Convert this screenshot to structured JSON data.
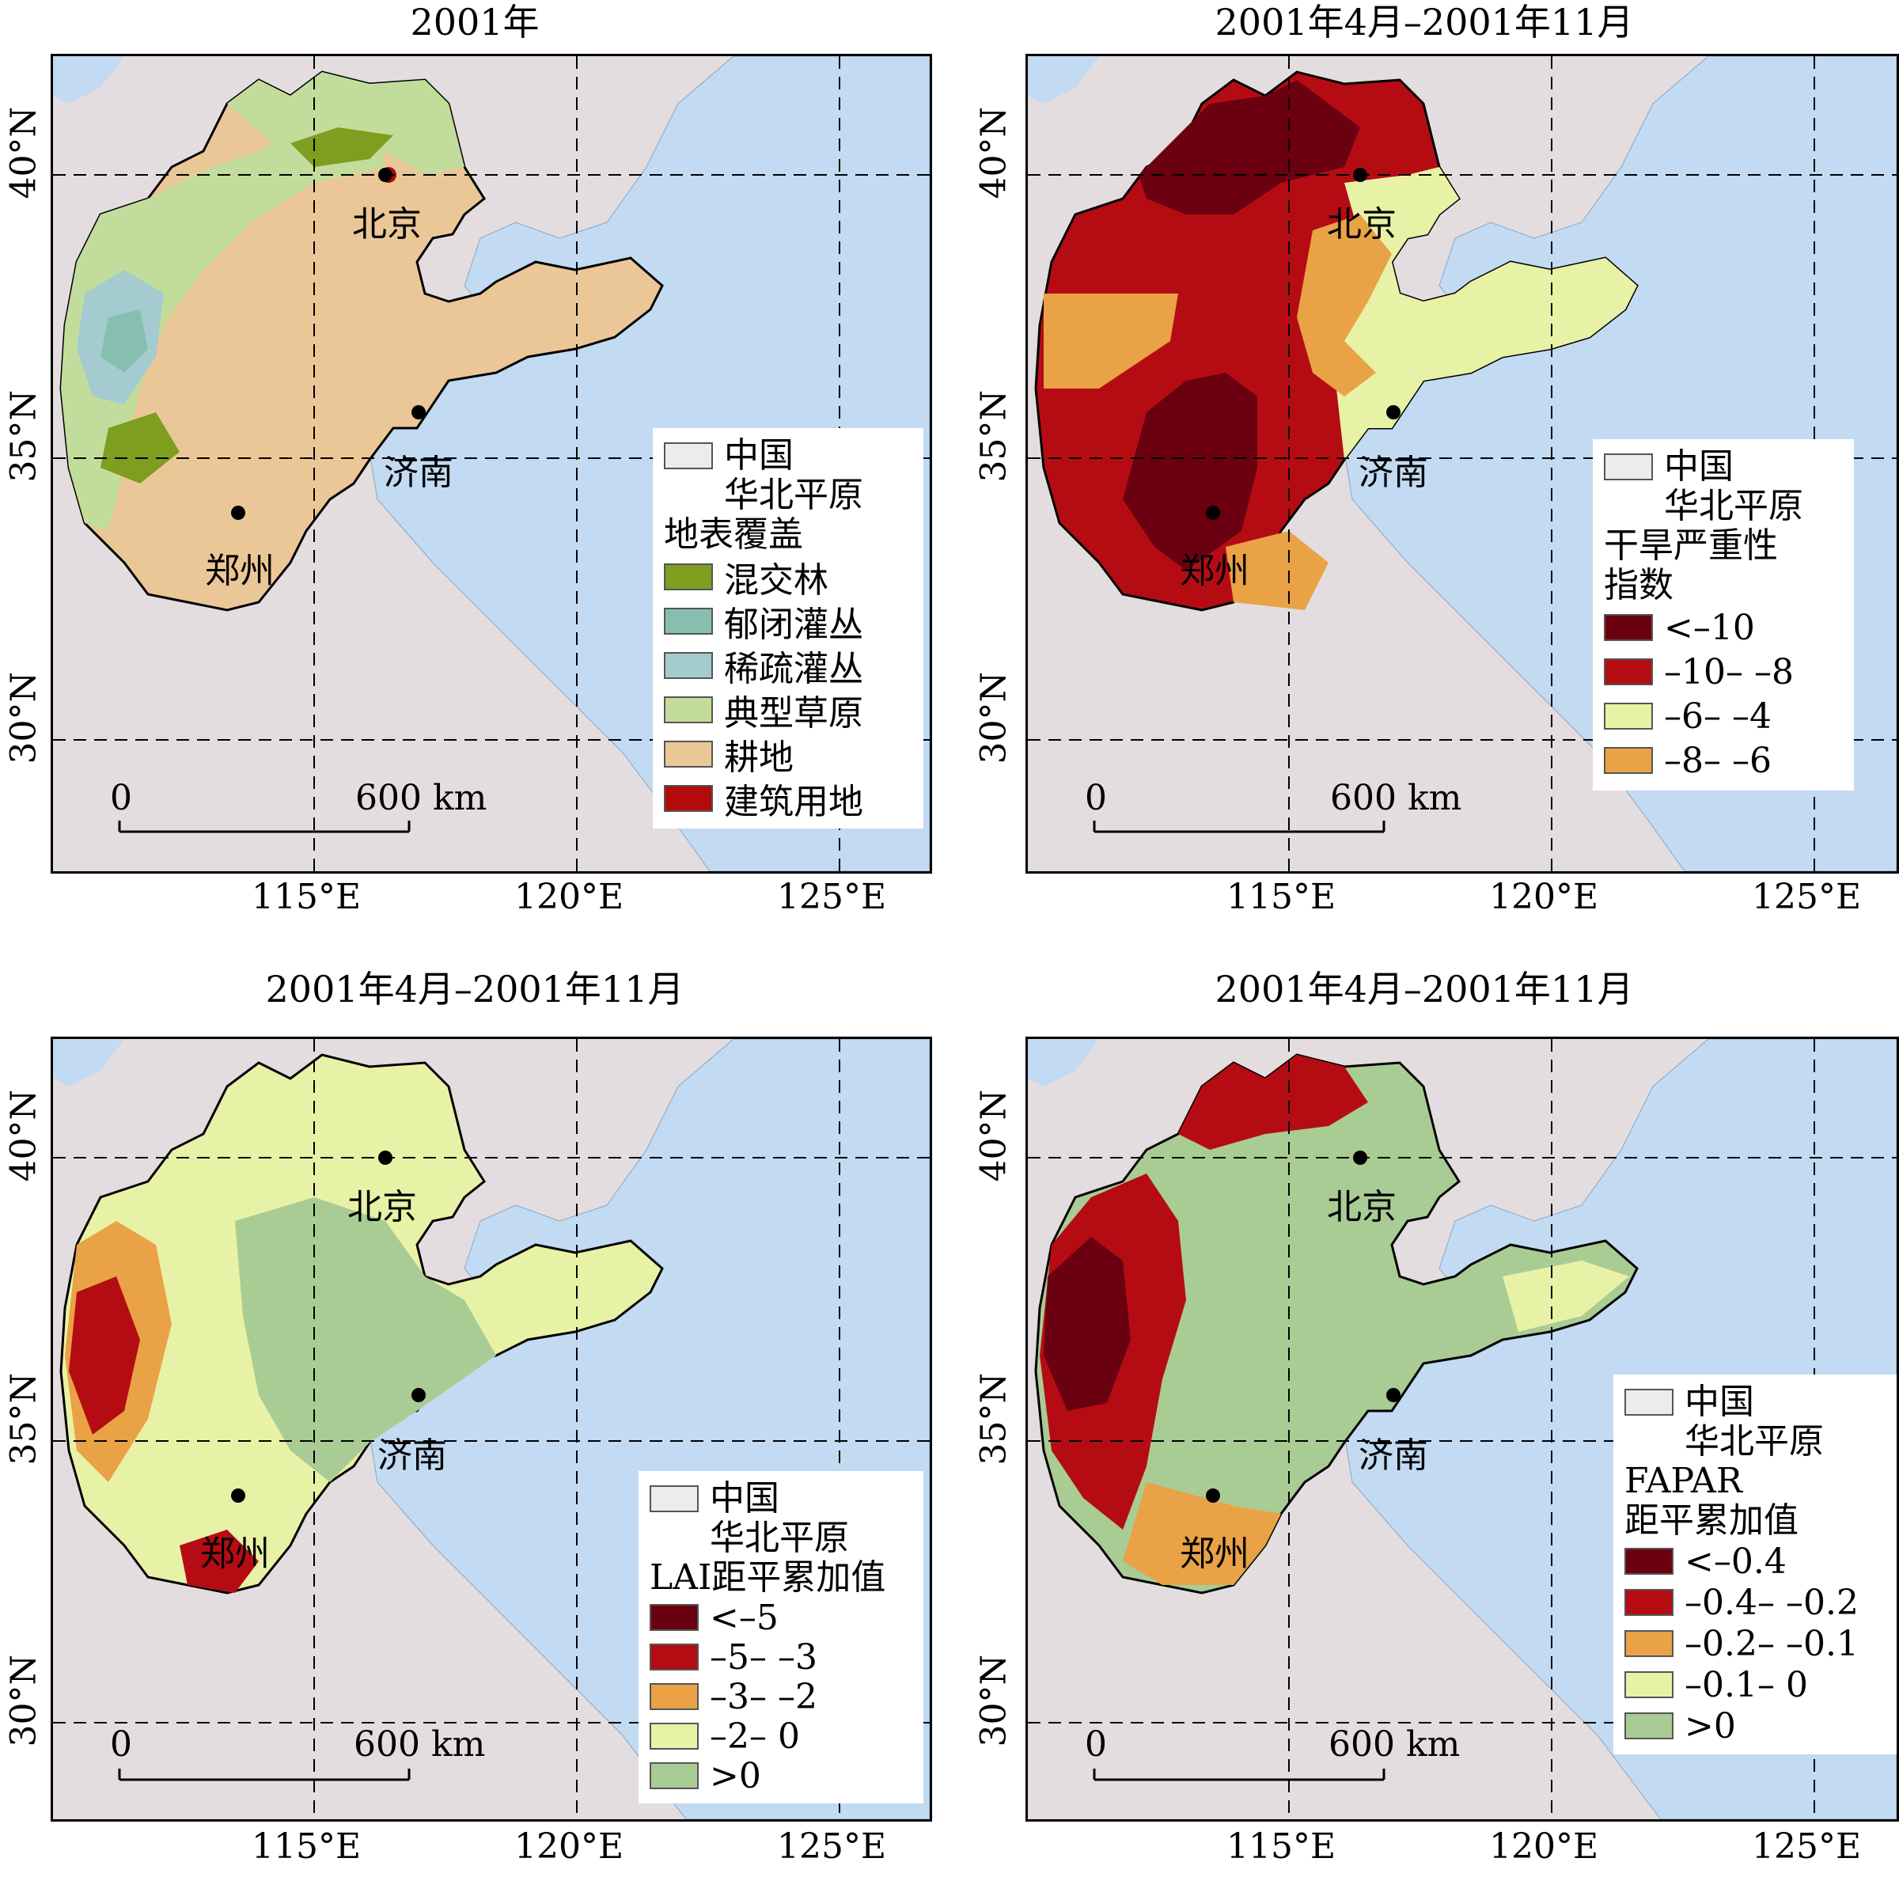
{
  "panels": [
    {
      "title": "2001年",
      "legend_title": "地表覆盖",
      "legend_items": [
        {
          "label": "混交林",
          "color": "#7f9d1e"
        },
        {
          "label": "郁闭灌丛",
          "color": "#86bfb0"
        },
        {
          "label": "稀疏灌丛",
          "color": "#a4cbcf"
        },
        {
          "label": "典型草原",
          "color": "#c2dd9b"
        },
        {
          "label": "耕地",
          "color": "#ebc798"
        },
        {
          "label": "建筑用地",
          "color": "#b30a0d"
        }
      ]
    },
    {
      "title": "2001年4月–2001年11月",
      "legend_title": "干旱严重性\n指数",
      "legend_items": [
        {
          "label": "<–10",
          "color": "#6b0010"
        },
        {
          "label": "–10– –8",
          "color": "#b50c13"
        },
        {
          "label": "–6– –4",
          "color": "#e8f2a6"
        },
        {
          "label": "–8– –6",
          "color": "#e9a245"
        }
      ]
    },
    {
      "title": "2001年4月–2001年11月",
      "legend_title": "LAI距平累加值",
      "legend_items": [
        {
          "label": "<–5",
          "color": "#6b0010"
        },
        {
          "label": "–5– –3",
          "color": "#b50c13"
        },
        {
          "label": "–3– –2",
          "color": "#e9a245"
        },
        {
          "label": "–2– 0",
          "color": "#e8f2a6"
        },
        {
          "label": ">0",
          "color": "#a9cc95"
        }
      ]
    },
    {
      "title": "2001年4月–2001年11月",
      "legend_title": "FAPAR\n距平累加值",
      "legend_items": [
        {
          "label": "<–0.4",
          "color": "#6b0010"
        },
        {
          "label": "–0.4– –0.2",
          "color": "#b50c13"
        },
        {
          "label": "–0.2– –0.1",
          "color": "#e9a245"
        },
        {
          "label": "–0.1– 0",
          "color": "#e8f2a6"
        },
        {
          "label": ">0",
          "color": "#a9cc95"
        }
      ]
    }
  ],
  "boundary_legend": {
    "line1": "中国",
    "line2": "华北平原",
    "color": "#ececec"
  },
  "lat_labels": [
    "40°N",
    "35°N",
    "30°N"
  ],
  "lon_labels": [
    "115°E",
    "120°E",
    "125°E"
  ],
  "cities": [
    "北京",
    "济南",
    "郑州"
  ],
  "scale_bar": {
    "zero": "0",
    "label": "600 km"
  },
  "colors": {
    "land": "#e3dde0",
    "sea": "#c2daf2",
    "grid": "#000000"
  }
}
